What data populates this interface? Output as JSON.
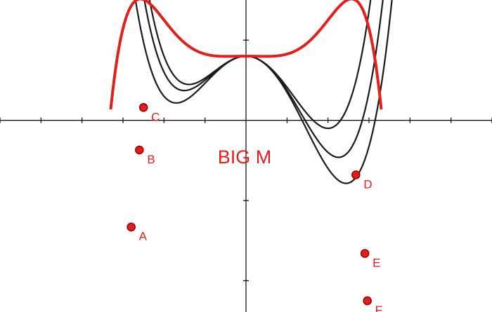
{
  "title": "BIG  M",
  "colors": {
    "accent": "#e0201c",
    "curve": "#1a1a1a",
    "axis": "#000000",
    "point_fill": "#e0201c",
    "point_stroke": "#a00000"
  },
  "axes": {
    "x_range": [
      -3.0,
      3.0
    ],
    "y_range": [
      -2.39,
      1.5
    ],
    "x_tick_step": 0.5,
    "y_tick_step": 1.0
  },
  "family": {
    "a": 1,
    "b": 0.6,
    "c": 1.7,
    "d": 0.8,
    "d_values": [
      0.2,
      0.5,
      0.7
    ]
  },
  "curve_names": [
    "curve-low",
    "curve-mid",
    "curve-high"
  ],
  "points": [
    {
      "label": "A",
      "x": -1.4,
      "y": -1.33
    },
    {
      "label": "B",
      "x": -1.3,
      "y": -0.37
    },
    {
      "label": "C",
      "x": -1.25,
      "y": 0.16
    },
    {
      "label": "D",
      "x": 1.34,
      "y": -0.68
    },
    {
      "label": "E",
      "x": 1.45,
      "y": -1.66
    },
    {
      "label": "F",
      "x": 1.48,
      "y": -2.25
    }
  ]
}
